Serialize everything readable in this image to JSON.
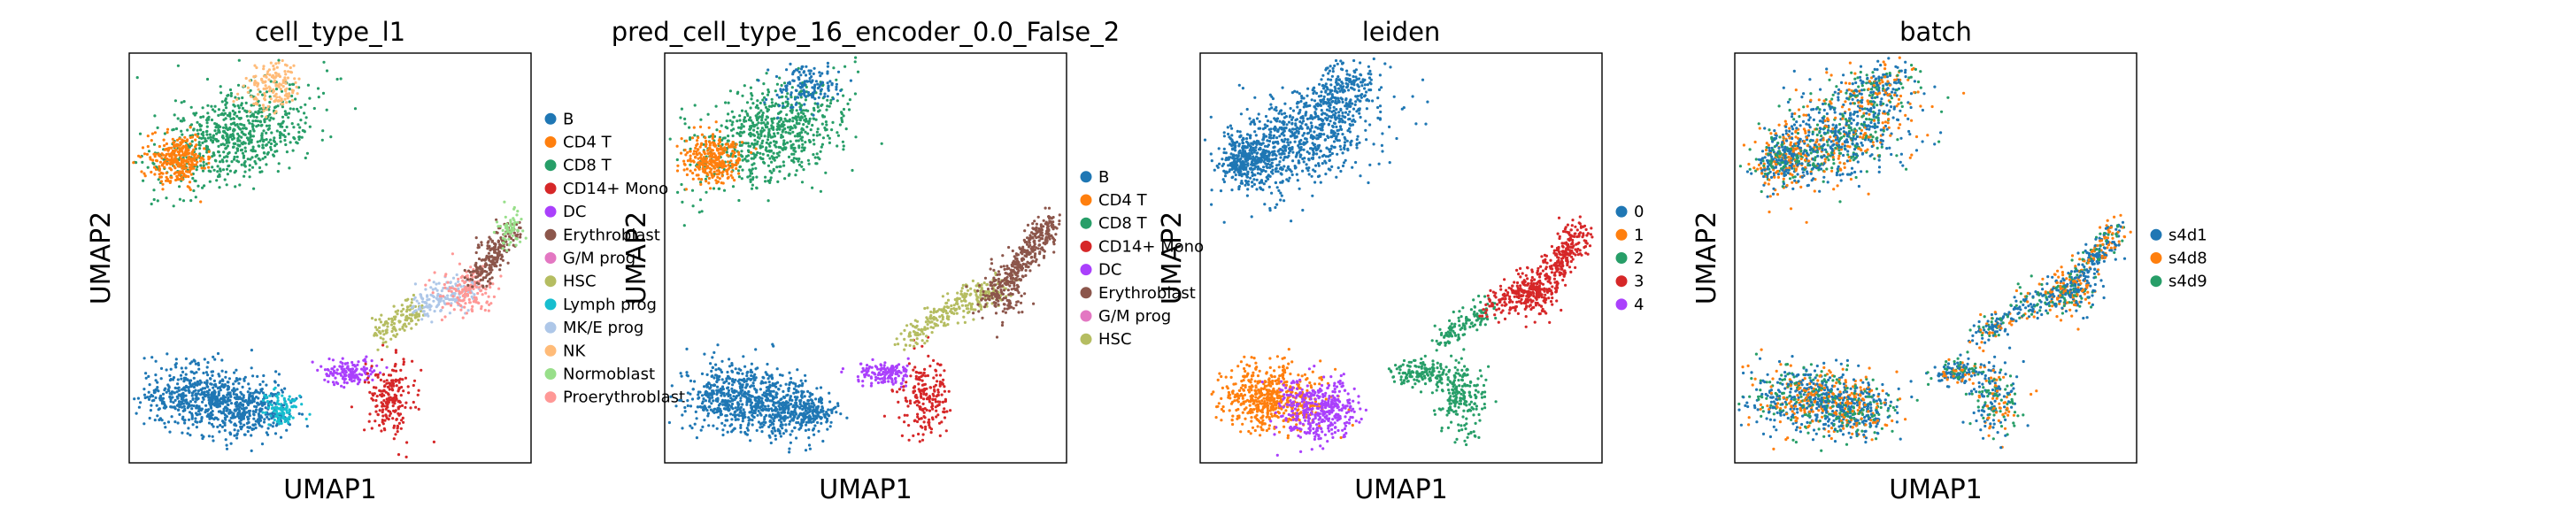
{
  "chart_data": [
    {
      "type": "scatter",
      "title": "cell_type_l1",
      "xlabel": "UMAP1",
      "ylabel": "UMAP2",
      "grid": false,
      "legend_position": "right",
      "legend": [
        {
          "label": "B",
          "color": "#1f77b4"
        },
        {
          "label": "CD4 T",
          "color": "#ff7f0e"
        },
        {
          "label": "CD8 T",
          "color": "#279e68"
        },
        {
          "label": "CD14+ Mono",
          "color": "#d62728"
        },
        {
          "label": "DC",
          "color": "#aa40fc"
        },
        {
          "label": "Erythroblast",
          "color": "#8c564b"
        },
        {
          "label": "G/M prog",
          "color": "#e377c2"
        },
        {
          "label": "HSC",
          "color": "#b5bd61"
        },
        {
          "label": "Lymph prog",
          "color": "#17becf"
        },
        {
          "label": "MK/E prog",
          "color": "#aec7e8"
        },
        {
          "label": "NK",
          "color": "#ffbb78"
        },
        {
          "label": "Normoblast",
          "color": "#98df8a"
        },
        {
          "label": "Proerythroblast",
          "color": "#ff9896"
        }
      ]
    },
    {
      "type": "scatter",
      "title": "pred_cell_type_16_encoder_0.0_False_2",
      "xlabel": "UMAP1",
      "ylabel": "UMAP2",
      "grid": false,
      "legend_position": "right",
      "legend": [
        {
          "label": "B",
          "color": "#1f77b4"
        },
        {
          "label": "CD4 T",
          "color": "#ff7f0e"
        },
        {
          "label": "CD8 T",
          "color": "#279e68"
        },
        {
          "label": "CD14+ Mono",
          "color": "#d62728"
        },
        {
          "label": "DC",
          "color": "#aa40fc"
        },
        {
          "label": "Erythroblast",
          "color": "#8c564b"
        },
        {
          "label": "G/M prog",
          "color": "#e377c2"
        },
        {
          "label": "HSC",
          "color": "#b5bd61"
        }
      ]
    },
    {
      "type": "scatter",
      "title": "leiden",
      "xlabel": "UMAP1",
      "ylabel": "UMAP2",
      "grid": false,
      "legend_position": "right",
      "legend": [
        {
          "label": "0",
          "color": "#1f77b4"
        },
        {
          "label": "1",
          "color": "#ff7f0e"
        },
        {
          "label": "2",
          "color": "#279e68"
        },
        {
          "label": "3",
          "color": "#d62728"
        },
        {
          "label": "4",
          "color": "#aa40fc"
        }
      ]
    },
    {
      "type": "scatter",
      "title": "batch",
      "xlabel": "UMAP1",
      "ylabel": "UMAP2",
      "grid": false,
      "legend_position": "right",
      "legend": [
        {
          "label": "s4d1",
          "color": "#1f77b4"
        },
        {
          "label": "s4d8",
          "color": "#ff7f0e"
        },
        {
          "label": "s4d9",
          "color": "#279e68"
        }
      ]
    }
  ]
}
